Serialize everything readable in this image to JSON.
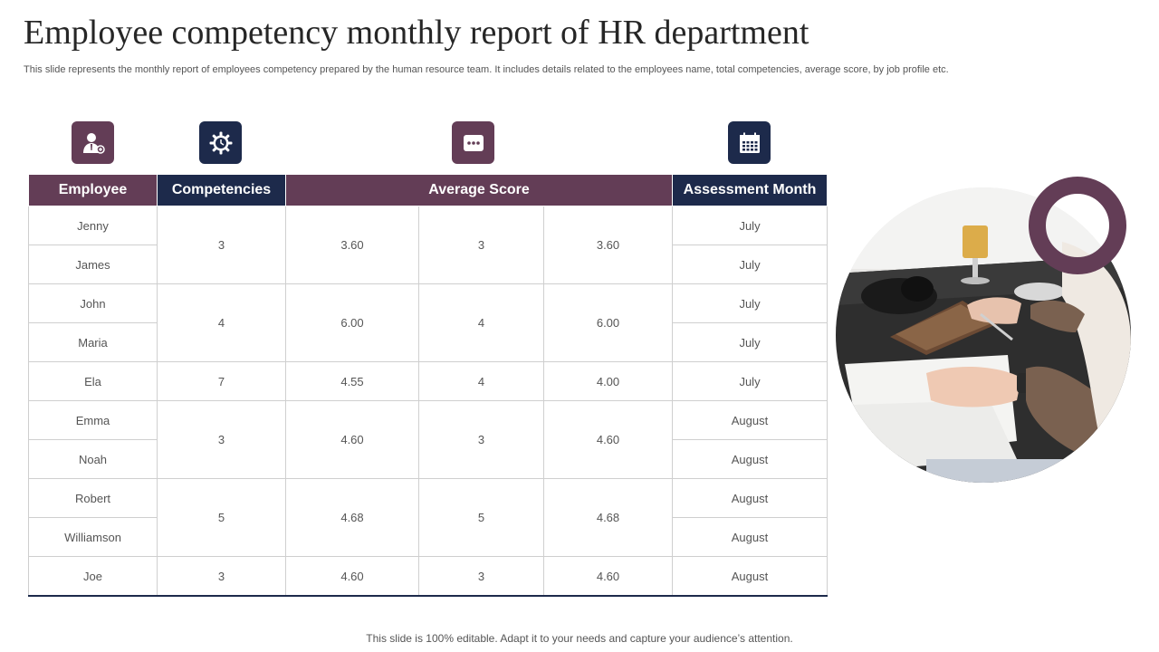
{
  "slide": {
    "title": "Employee competency monthly report of HR department",
    "subtitle": "This slide represents the monthly report of employees competency prepared by the human resource team. It includes details related to the employees name, total competencies, average score, by job profile etc.",
    "footer": "This slide is 100% editable. Adapt it to your needs and capture your audience’s attention."
  },
  "icons": [
    {
      "name": "employee-icon",
      "color": "#633d56"
    },
    {
      "name": "gear-clock-icon",
      "color": "#1d2a4b"
    },
    {
      "name": "score-dots-icon",
      "color": "#633d56"
    },
    {
      "name": "calendar-icon",
      "color": "#1d2a4b"
    }
  ],
  "colors": {
    "accent_purple": "#633d56",
    "accent_navy": "#1d2a4b"
  },
  "table": {
    "headers": [
      "Employee",
      "Competencies",
      "Average Score",
      "Assessment Month"
    ],
    "employees": [
      "Jenny",
      "James",
      "John",
      "Maria",
      "Ela",
      "Emma",
      "Noah",
      "Robert",
      "Williamson",
      "Joe"
    ],
    "months": [
      "July",
      "July",
      "July",
      "July",
      "July",
      "August",
      "August",
      "August",
      "August",
      "August"
    ],
    "groups": [
      {
        "competencies": "3",
        "score1": "3.60",
        "score2": "3",
        "score3": "3.60"
      },
      {
        "competencies": "4",
        "score1": "6.00",
        "score2": "4",
        "score3": "6.00"
      },
      {
        "competencies": "7",
        "score1": "4.55",
        "score2": "4",
        "score3": "4.00"
      },
      {
        "competencies": "3",
        "score1": "4.60",
        "score2": "3",
        "score3": "4.60"
      },
      {
        "competencies": "5",
        "score1": "4.68",
        "score2": "5",
        "score3": "4.68"
      },
      {
        "competencies": "3",
        "score1": "4.60",
        "score2": "3",
        "score3": "4.60"
      }
    ]
  }
}
